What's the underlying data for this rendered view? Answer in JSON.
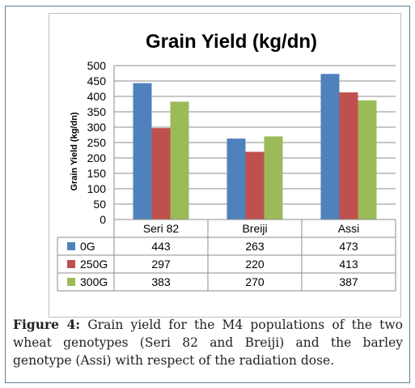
{
  "chart_data": {
    "type": "bar",
    "title": "Grain Yield (kg/dn)",
    "ylabel": "Grain Yield (kg/dn)",
    "xlabel": "",
    "ylim": [
      0,
      500
    ],
    "yticks": [
      0,
      50,
      100,
      150,
      200,
      250,
      300,
      350,
      400,
      450,
      500
    ],
    "grid": true,
    "categories": [
      "Seri 82",
      "Breiji",
      "Assi"
    ],
    "series": [
      {
        "name": "0G",
        "color": "#4f81bd",
        "values": [
          443,
          263,
          473
        ]
      },
      {
        "name": "250G",
        "color": "#c0504d",
        "values": [
          297,
          220,
          413
        ]
      },
      {
        "name": "300G",
        "color": "#9bbb59",
        "values": [
          383,
          270,
          387
        ]
      }
    ],
    "data_table": true
  },
  "caption": {
    "label": "Figure 4:",
    "text": " Grain yield for the M4 populations of the two wheat genotypes (Seri 82 and Breiji) and the barley genotype (Assi) with respect of the radiation dose."
  }
}
